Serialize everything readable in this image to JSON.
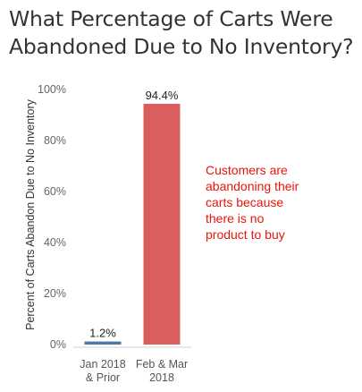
{
  "title_lines": [
    "What Percentage of Carts Were",
    "Abandoned Due to No Inventory?"
  ],
  "chart_data": {
    "type": "bar",
    "title": "What Percentage of Carts Were Abandoned Due to No Inventory?",
    "ylabel": "Percent of Carts Abandon Due to No Inventory",
    "xlabel": "",
    "categories": [
      [
        "Jan 2018",
        "& Prior"
      ],
      [
        "Feb & Mar",
        "2018"
      ]
    ],
    "values": [
      1.2,
      94.4
    ],
    "data_labels": [
      "1.2%",
      "94.4%"
    ],
    "bar_colors": [
      "#4e79a7",
      "#d95f5f"
    ],
    "ylim": [
      0,
      100
    ],
    "yticks": [
      0,
      20,
      40,
      60,
      80,
      100
    ],
    "ytick_labels": [
      "0%",
      "20%",
      "40%",
      "60%",
      "80%",
      "100%"
    ],
    "grid": false,
    "annotation_lines": [
      "Customers are",
      "abandoning their",
      "carts because",
      "there is no",
      "product to buy"
    ],
    "annotation_color": "#e8150b"
  }
}
